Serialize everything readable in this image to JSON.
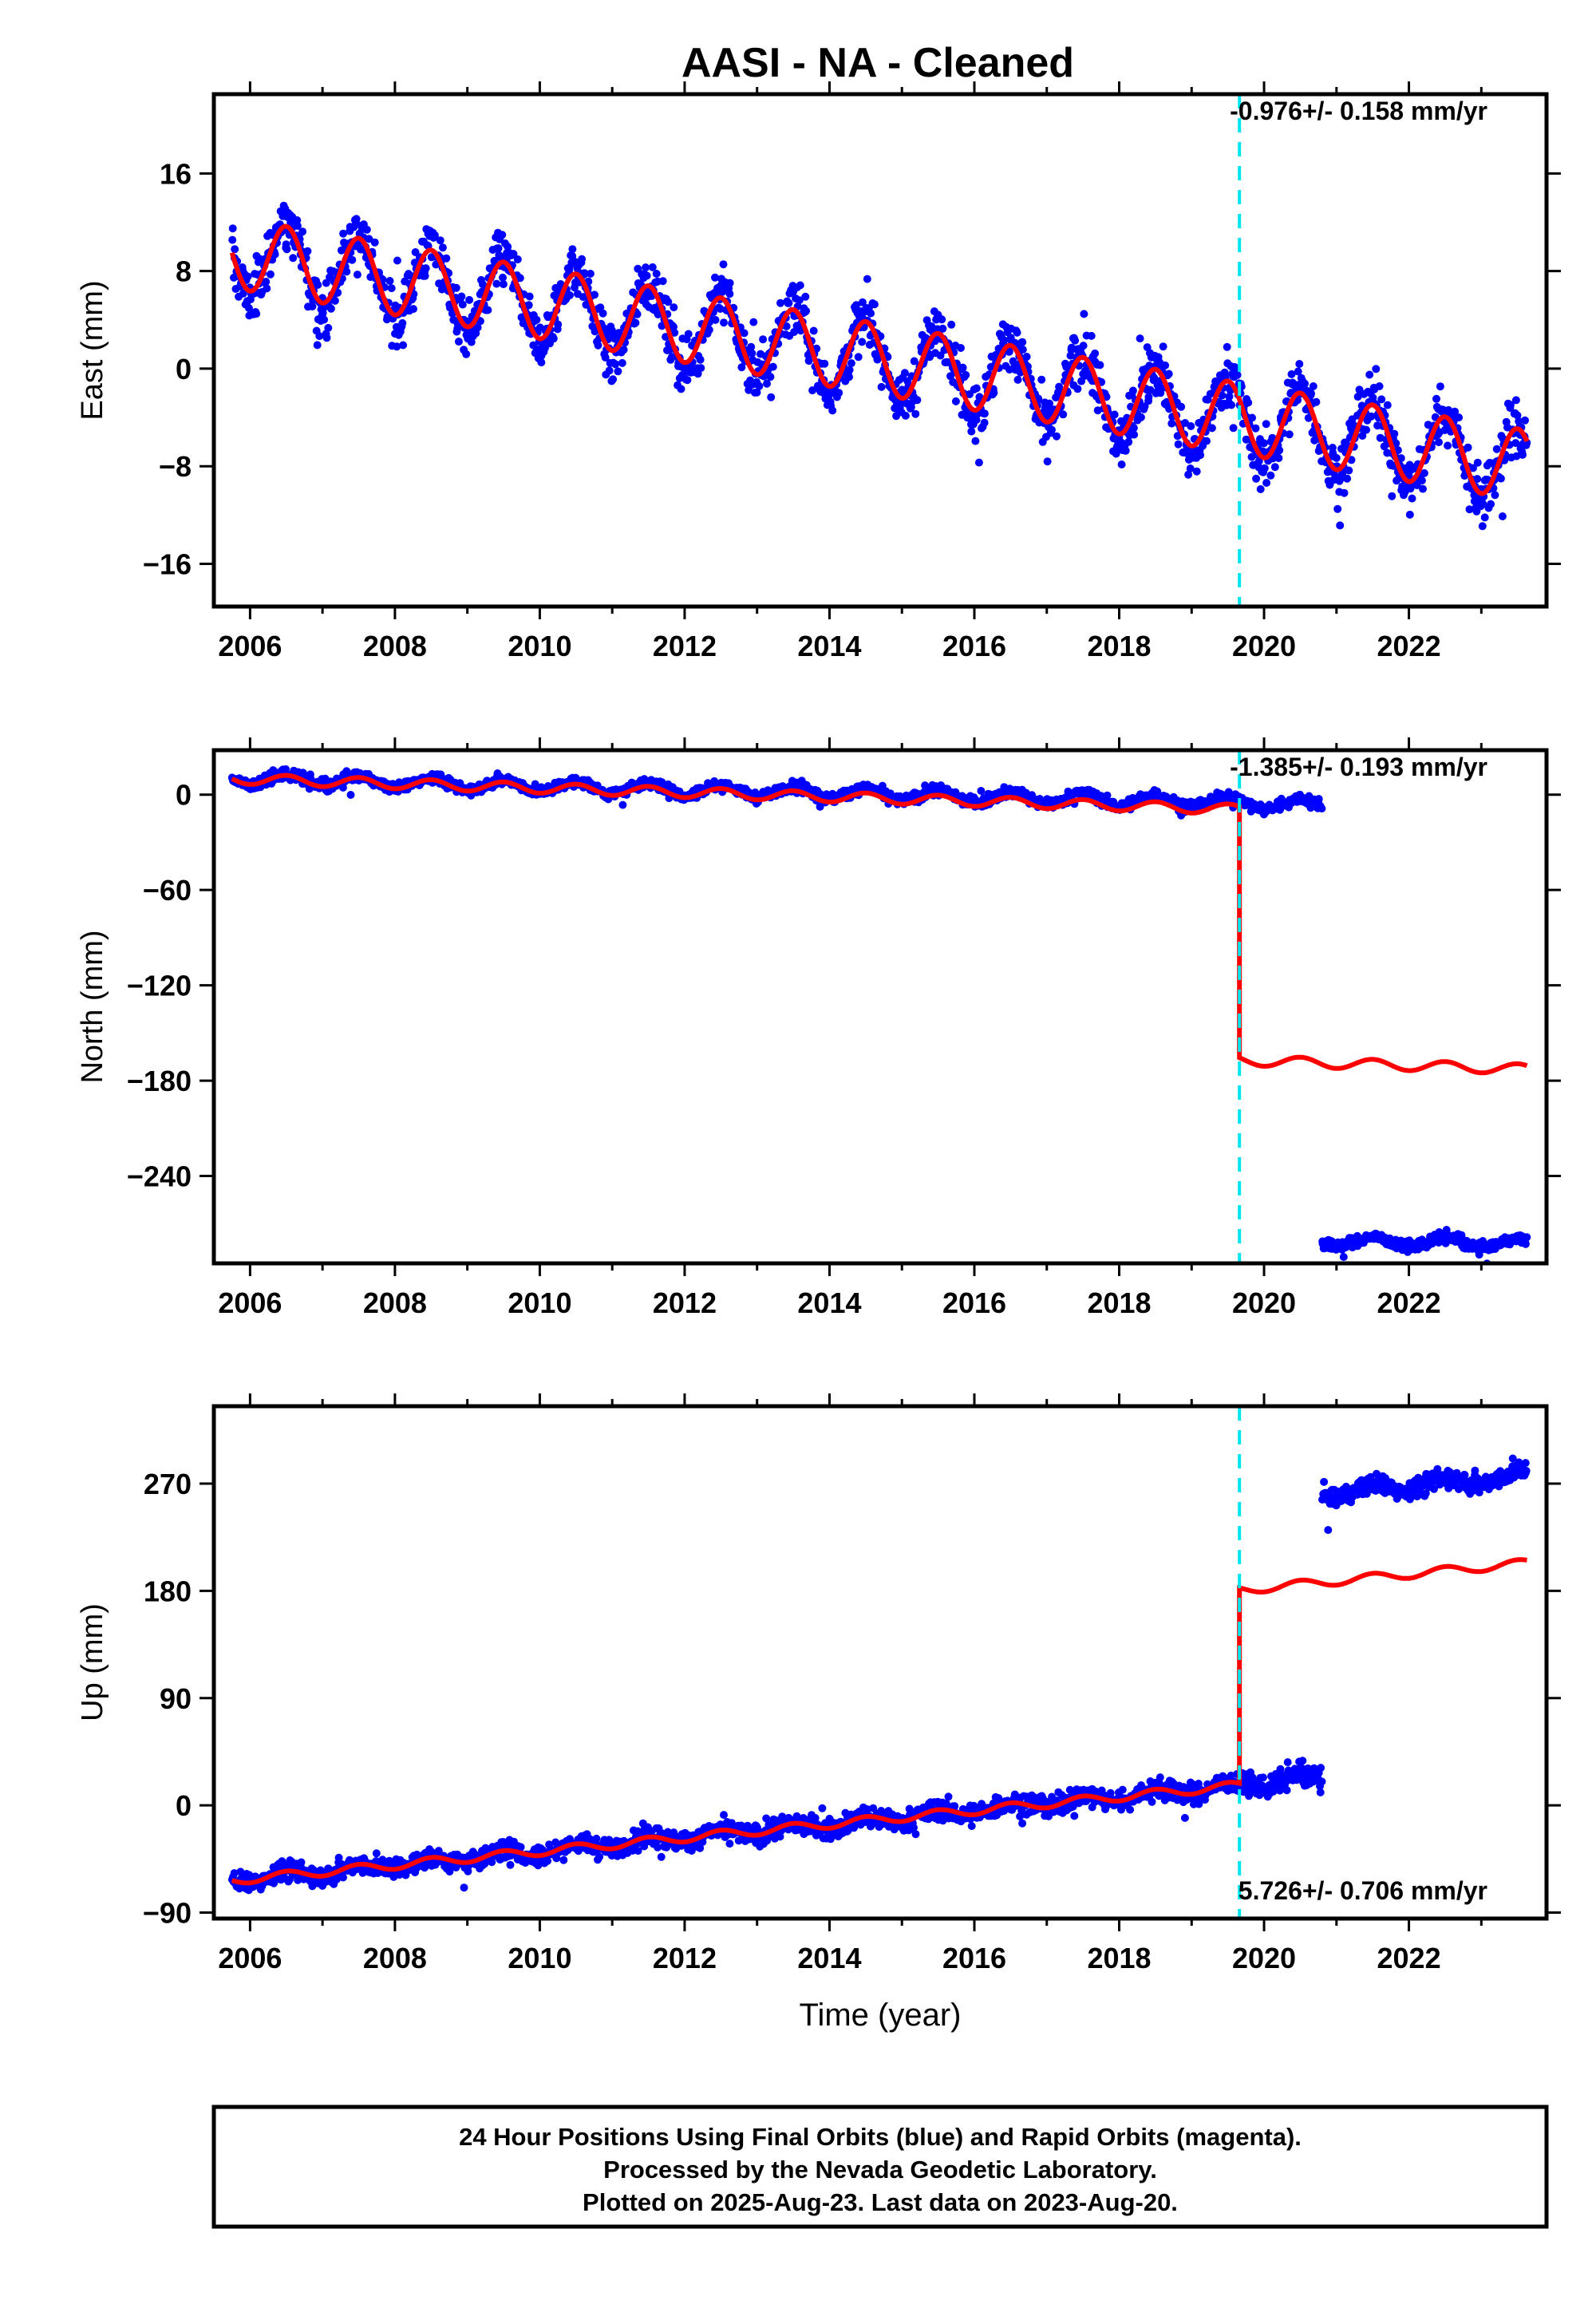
{
  "title": "AASI  - NA - Cleaned",
  "colors": {
    "final": "#0000ff",
    "model": "#ff0000",
    "marker": "#00e5ee",
    "frame": "#000000"
  },
  "marker_year": 2019.66,
  "x_ticks": [
    "2006",
    "2008",
    "2010",
    "2012",
    "2014",
    "2016",
    "2018",
    "2020",
    "2022"
  ],
  "x_label": "Time (year)",
  "footer": {
    "line1": "24 Hour Positions Using Final Orbits (blue) and Rapid Orbits (magenta).",
    "line2": "Processed by the Nevada Geodetic Laboratory.",
    "line3": "Plotted on 2025-Aug-23. Last data on 2023-Aug-20."
  },
  "chart_data": [
    {
      "type": "scatter",
      "title": "AASI  - NA - Cleaned",
      "ylabel": "East (mm)",
      "xlabel": "",
      "xlim": [
        2005.5,
        2023.9
      ],
      "ylim": [
        -19.5,
        22.5
      ],
      "yticks": [
        16,
        8,
        0,
        -8,
        -16
      ],
      "ytick_labels": [
        "16",
        "8",
        "0",
        "−8",
        "−16"
      ],
      "rate_label": "-0.976+/- 0.158 mm/yr",
      "data_span": [
        2005.75,
        2023.63
      ],
      "series": [
        {
          "name": "Final Orbits (blue)",
          "kind": "points",
          "segments": [
            {
              "from": 2005.75,
              "to": 2023.63,
              "offset": 9.5,
              "trend": -0.976,
              "amp": 3.2,
              "noise": 1.6
            }
          ]
        },
        {
          "kind": "model_line",
          "segments": [
            {
              "from": 2005.75,
              "to": 2023.63,
              "offset": 9.5,
              "trend": -0.976,
              "amp": 2.9
            }
          ]
        }
      ]
    },
    {
      "type": "scatter",
      "ylabel": "North (mm)",
      "xlabel": "",
      "xlim": [
        2005.5,
        2023.9
      ],
      "ylim": [
        -295,
        28
      ],
      "yticks": [
        0,
        -60,
        -120,
        -180,
        -240
      ],
      "ytick_labels": [
        "0",
        "−60",
        "−120",
        "−180",
        "−240"
      ],
      "rate_label": "-1.385+/- 0.193 mm/yr",
      "data_span": [
        2005.75,
        2023.63
      ],
      "series": [
        {
          "name": "Final Orbits (blue)",
          "kind": "points",
          "segments": [
            {
              "from": 2005.75,
              "to": 2020.8,
              "offset": 10,
              "trend": -1.1,
              "amp": 3.5,
              "noise": 2.4
            },
            {
              "from": 2020.8,
              "to": 2023.63,
              "offset": -272,
              "trend": -0.6,
              "amp": 3.0,
              "noise": 2.2
            }
          ]
        },
        {
          "kind": "model_line",
          "segments": [
            {
              "from": 2005.75,
              "to": 2019.66,
              "offset": 10,
              "trend": -1.385,
              "amp": 3.2
            },
            {
              "from": 2019.66,
              "to": 2023.63,
              "offset": -148,
              "trend": -1.385,
              "amp": 3.2
            }
          ]
        }
      ]
    },
    {
      "type": "scatter",
      "ylabel": "Up (mm)",
      "xlabel": "Time (year)",
      "xlim": [
        2005.5,
        2023.9
      ],
      "ylim": [
        -95,
        335
      ],
      "yticks": [
        270,
        180,
        90,
        0,
        -90
      ],
      "ytick_labels": [
        "270",
        "180",
        "90",
        "0",
        "−90"
      ],
      "rate_label": "5.726+/- 0.706 mm/yr",
      "data_span": [
        2005.75,
        2023.63
      ],
      "series": [
        {
          "name": "Final Orbits (blue)",
          "kind": "points",
          "segments": [
            {
              "from": 2005.75,
              "to": 2020.8,
              "offset": -63,
              "trend": 5.726,
              "amp": 3.5,
              "noise": 6.0
            },
            {
              "from": 2020.8,
              "to": 2023.63,
              "offset": 175,
              "trend": 5.726,
              "amp": 4.0,
              "noise": 6.0
            }
          ]
        },
        {
          "kind": "model_line",
          "segments": [
            {
              "from": 2005.75,
              "to": 2019.66,
              "offset": -63,
              "trend": 5.726,
              "amp": 3.5
            },
            {
              "from": 2019.66,
              "to": 2023.63,
              "offset": 101,
              "trend": 5.726,
              "amp": 3.5
            }
          ]
        }
      ]
    }
  ]
}
